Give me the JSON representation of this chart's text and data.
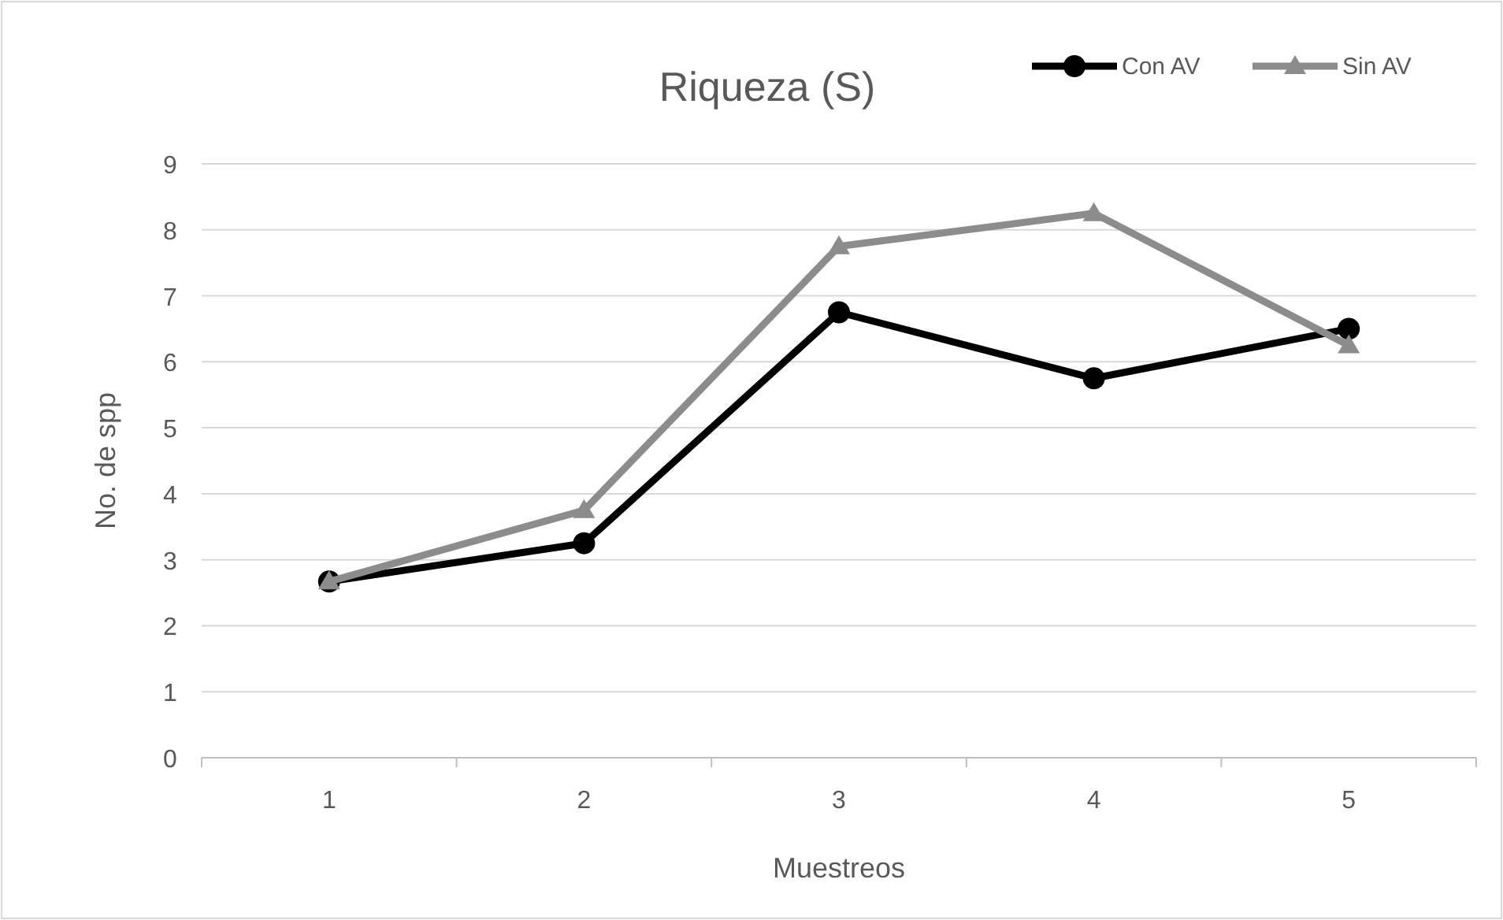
{
  "chart_data": {
    "type": "line",
    "title": "Riqueza (S)",
    "xlabel": "Muestreos",
    "ylabel": "No. de spp",
    "categories": [
      "1",
      "2",
      "3",
      "4",
      "5"
    ],
    "series": [
      {
        "name": "Con AV",
        "color": "#000000",
        "marker": "circle",
        "values": [
          2.67,
          3.25,
          6.75,
          5.75,
          6.5
        ]
      },
      {
        "name": "Sin AV",
        "color": "#8c8c8c",
        "marker": "triangle",
        "values": [
          2.67,
          3.75,
          7.75,
          8.25,
          6.25
        ]
      }
    ],
    "ylim": [
      0,
      9
    ],
    "yticks": [
      0,
      1,
      2,
      3,
      4,
      5,
      6,
      7,
      8,
      9
    ],
    "grid": "y",
    "legend": "top right"
  }
}
